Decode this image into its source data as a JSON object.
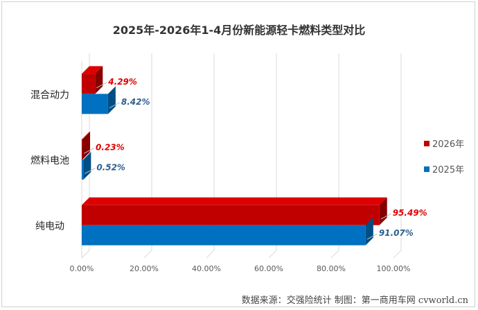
{
  "chart_data": {
    "type": "bar",
    "orientation": "horizontal",
    "title": "2025年-2026年1-4月份新能源轻卡燃料类型对比",
    "categories": [
      "混合动力",
      "燃料电池",
      "纯电动"
    ],
    "series": [
      {
        "name": "2026年",
        "values": [
          4.29,
          0.23,
          95.49
        ],
        "labels": [
          "4.29%",
          "0.23%",
          "95.49%"
        ],
        "color": "#c00000"
      },
      {
        "name": "2025年",
        "values": [
          8.42,
          0.52,
          91.07
        ],
        "labels": [
          "8.42%",
          "0.52%",
          "91.07%"
        ],
        "color": "#0070c0"
      }
    ],
    "xlim": [
      0,
      100
    ],
    "x_ticks": [
      "0.00%",
      "20.00%",
      "40.00%",
      "60.00%",
      "80.00%",
      "100.00%"
    ],
    "grid": true,
    "legend_position": "right"
  },
  "source_note": "数据来源：交强险统计   制图：第一商用车网 cvworld.cn"
}
